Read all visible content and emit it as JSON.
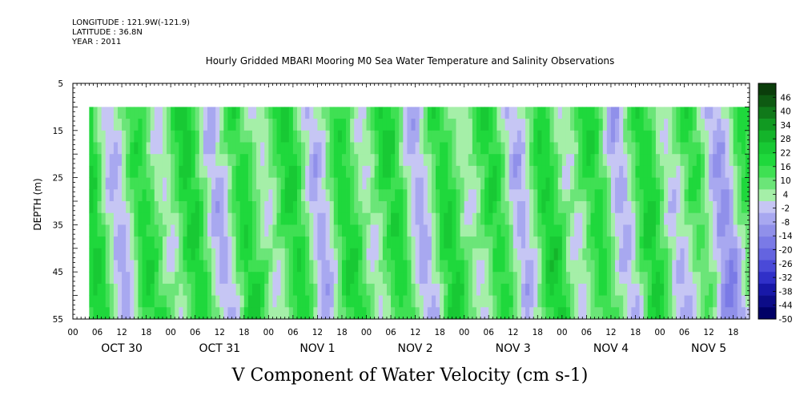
{
  "header": {
    "longitude": "LONGITUDE : 121.9W(-121.9)",
    "latitude": "LATITUDE : 36.8N",
    "year": "YEAR : 2011"
  },
  "chart_data": {
    "type": "heatmap",
    "title": "Hourly Gridded MBARI Mooring M0 Sea Water Temperature and Salinity Observations",
    "xlabel": "V Component of Water Velocity (cm s-1)",
    "ylabel": "DEPTH (m)",
    "ylim": [
      5,
      55
    ],
    "y_ticks": [
      5,
      15,
      25,
      35,
      45,
      55
    ],
    "data_depth_range": [
      10,
      55
    ],
    "x_start_hour": 0,
    "x_end_hour": 166,
    "data_start_hour": 4,
    "x_hour_ticks": [
      "00",
      "06",
      "12",
      "18",
      "00",
      "06",
      "12",
      "18",
      "00",
      "06",
      "12",
      "18",
      "00",
      "06",
      "12",
      "18",
      "00",
      "06",
      "12",
      "18",
      "00",
      "06",
      "12",
      "18",
      "00",
      "06",
      "12",
      "18"
    ],
    "day_labels": [
      "OCT 30",
      "OCT 31",
      "NOV  1",
      "NOV  2",
      "NOV  3",
      "NOV  4",
      "NOV  5"
    ],
    "colorbar": {
      "levels": [
        46,
        40,
        34,
        28,
        22,
        16,
        10,
        4,
        -2,
        -8,
        -14,
        -20,
        -26,
        -32,
        -38,
        -44,
        -50
      ],
      "color_min": -50,
      "color_max": 52,
      "colors": [
        "#0b3d0b",
        "#0e5a12",
        "#10791a",
        "#119a22",
        "#14b42a",
        "#18c934",
        "#1fd83c",
        "#3fe053",
        "#6be578",
        "#a5efa8",
        "#c6c6f4",
        "#a8a8f0",
        "#9090ea",
        "#7a7ae6",
        "#6464e0",
        "#4a4ad8",
        "#3030c8",
        "#1818a8",
        "#0c0c88",
        "#000066"
      ]
    },
    "grid": false,
    "legend": "right colorbar"
  }
}
